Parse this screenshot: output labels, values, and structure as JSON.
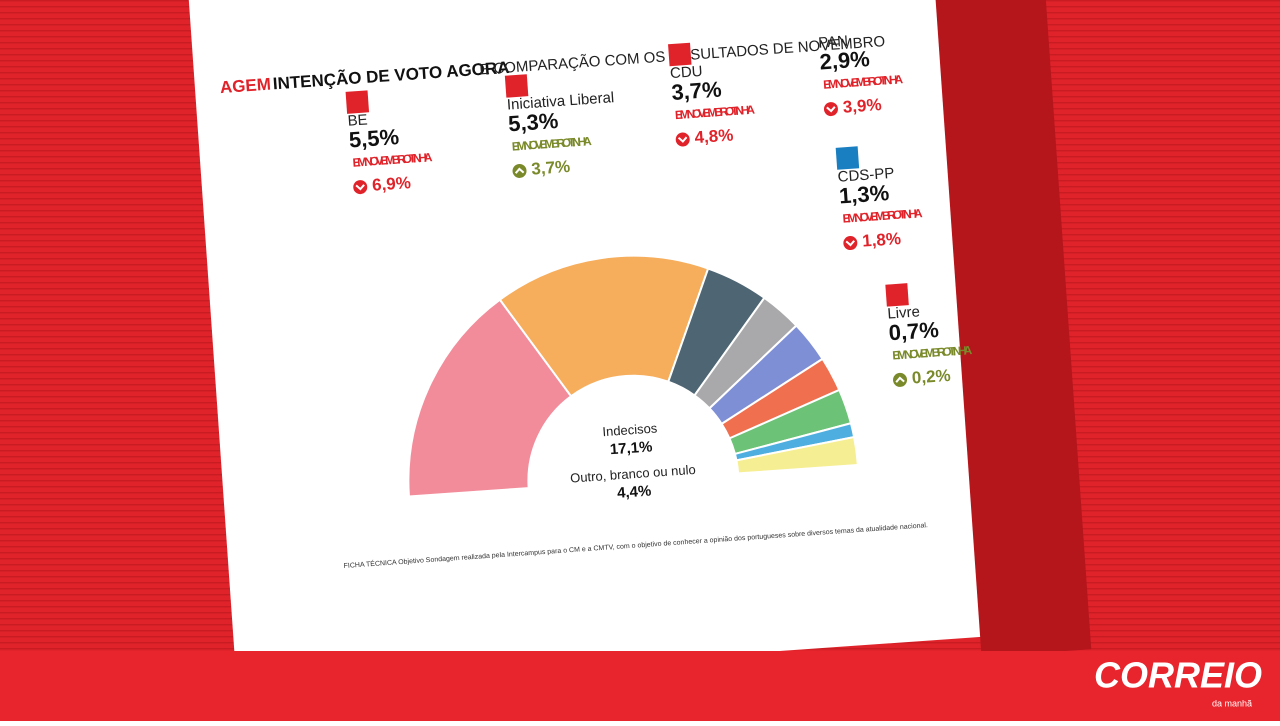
{
  "header": {
    "title_red": "AGEM",
    "title_bold": "INTENÇÃO DE VOTO AGORA",
    "title_rest": "E COMPARAÇÃO COM OS RESULTADOS DE NOVEMBRO"
  },
  "panels": [
    {
      "name": "BE",
      "now": "5,5%",
      "note": "EM NOVEMBRO TINHA",
      "before": "6,9%",
      "trend": "down"
    },
    {
      "name": "Iniciativa Liberal",
      "now": "5,3%",
      "note": "EM NOVEMBRO TINHA",
      "before": "3,7%",
      "trend": "up"
    },
    {
      "name": "CDU",
      "now": "3,7%",
      "note": "EM NOVEMBRO TINHA",
      "before": "4,8%",
      "trend": "down"
    },
    {
      "name": "PAN",
      "now": "2,9%",
      "note": "EM NOVEMBRO TINHA",
      "before": "3,9%",
      "trend": "down"
    },
    {
      "name": "CDS-PP",
      "now": "1,3%",
      "note": "EM NOVEMBRO TINHA",
      "before": "1,8%",
      "trend": "down"
    },
    {
      "name": "Livre",
      "now": "0,7%",
      "note": "EM NOVEMBRO TINHA",
      "before": "0,2%",
      "trend": "up"
    }
  ],
  "chart_data": {
    "type": "semi_donut",
    "categories": [
      null,
      null,
      null,
      null,
      null,
      null,
      null,
      null,
      null
    ],
    "values": [
      32,
      31,
      9,
      6,
      6,
      5,
      5,
      2,
      4
    ],
    "colors": [
      "#f28c9a",
      "#f6ad5c",
      "#4e6573",
      "#a9a9ab",
      "#7f8fd6",
      "#ef6f4f",
      "#6cc276",
      "#4faee0",
      "#f6ee93"
    ],
    "center_labels": [
      {
        "name": "Indecisos",
        "value": "17,1%"
      },
      {
        "name": "Outro, branco ou nulo",
        "value": "4,4%"
      }
    ]
  },
  "footer": {
    "method": "FICHA TÉCNICA Objetivo Sondagem realizada pela Intercampus para o CM e a CMTV, com o objetivo de conhecer a opinião dos portugueses sobre diversos temas da atualidade nacional."
  },
  "brand": {
    "name": "CORREIO",
    "sub": "da manhã"
  }
}
